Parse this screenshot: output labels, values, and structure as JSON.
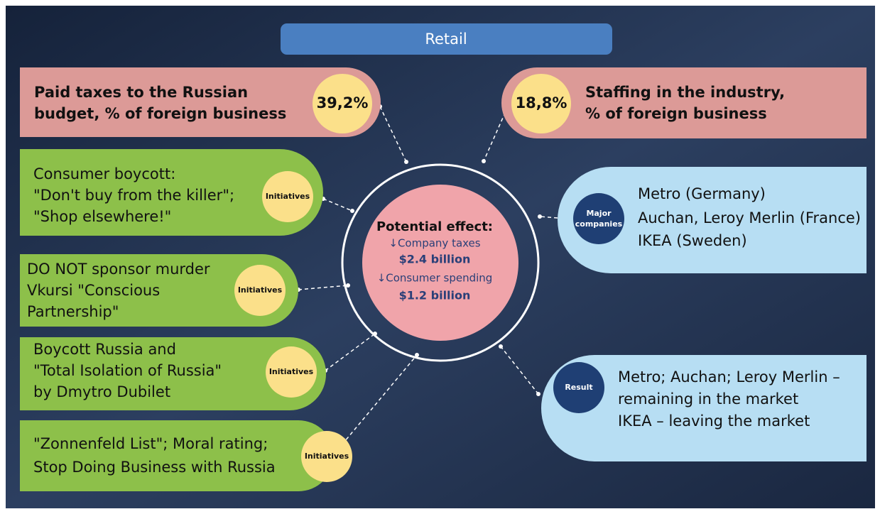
{
  "header": {
    "title": "Retail"
  },
  "metrics": [
    {
      "label_lines": [
        "Paid taxes to the Russian",
        "budget, % of foreign business"
      ],
      "value": "39,2%"
    },
    {
      "label_lines": [
        "Staffing in the industry,",
        "% of foreign business"
      ],
      "value": "18,8%"
    }
  ],
  "center": {
    "title": "Potential effect:",
    "lines": [
      "↓Company taxes",
      "$2.4 billion",
      "↓Consumer spending",
      "$1.2 billion"
    ]
  },
  "initiatives": [
    {
      "badge": "Initiatives",
      "lines": [
        "Consumer boycott:",
        "\"Don't buy from the killer\";",
        "\"Shop elsewhere!\""
      ]
    },
    {
      "badge": "Initiatives",
      "lines": [
        "DO NOT sponsor murder",
        "Vkursi \"Conscious",
        "Partnership\""
      ]
    },
    {
      "badge": "Initiatives",
      "lines": [
        "Boycott Russia and",
        "\"Total Isolation of Russia\"",
        "by Dmytro Dubilet"
      ]
    },
    {
      "badge": "Initiatives",
      "lines": [
        "\"Zonnenfeld List\"; Moral rating;",
        "Stop Doing Business with Russia"
      ]
    }
  ],
  "companies": {
    "badge_lines": [
      "Major",
      "companies"
    ],
    "lines": [
      "Metro (Germany)",
      "Auchan, Leroy Merlin (France)",
      "IKEA (Sweden)"
    ]
  },
  "result": {
    "badge": "Result",
    "lines": [
      "Metro; Auchan; Leroy Merlin –",
      "remaining in the market",
      "IKEA – leaving the market"
    ]
  }
}
